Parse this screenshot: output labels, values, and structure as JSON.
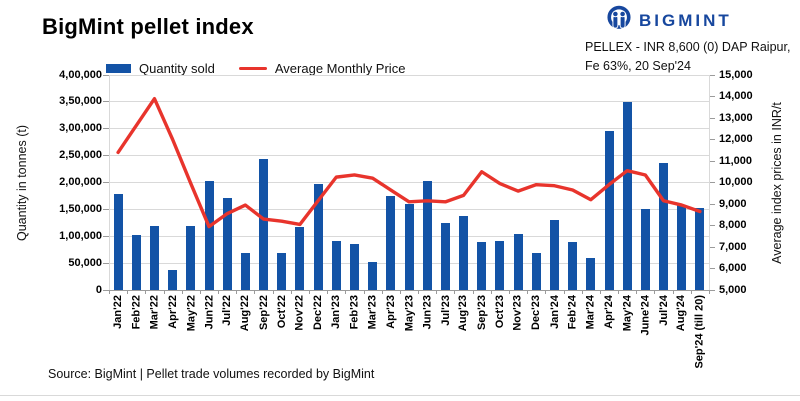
{
  "header": {
    "title": "BigMint pellet index",
    "brand": "BIGMINT",
    "quote_line1": "PELLEX - INR 8,600 (0) DAP Raipur,",
    "quote_line2": "Fe 63%, 20 Sep'24"
  },
  "legend": {
    "bar_label": "Quantity sold",
    "line_label": "Average Monthly Price"
  },
  "footer": {
    "source": "Source: BigMint | Pellet trade volumes recorded by BigMint"
  },
  "colors": {
    "bar": "#1353A6",
    "line": "#E8342C",
    "brand": "#17479E",
    "grid": "#D9D9D9",
    "axis": "#9B9B9B"
  },
  "chart_data": {
    "type": "bar",
    "subtype": "bar+line combo",
    "title": "BigMint pellet index",
    "categories": [
      "Jan'22",
      "Feb'22",
      "Mar'22",
      "Apr'22",
      "May'22",
      "Jun'22",
      "Jul'22",
      "Aug'22",
      "Sep'22",
      "Oct'22",
      "Nov'22",
      "Dec'22",
      "Jan'23",
      "Feb'23",
      "Mar'23",
      "Apr'23",
      "May'23",
      "Jun'23",
      "Jul'23",
      "Aug'23",
      "Sep'23",
      "Oct'23",
      "Nov'23",
      "Dec'23",
      "Jan'24",
      "Feb'24",
      "Mar'24",
      "Apr'24",
      "May'24",
      "June'24",
      "Jul'24",
      "Aug'24",
      "Sep'24 (till 20)"
    ],
    "series": [
      {
        "name": "Quantity sold",
        "type": "bar",
        "axis": "left",
        "values": [
          178000,
          103000,
          120000,
          37000,
          119000,
          203000,
          171000,
          68000,
          243000,
          68000,
          117000,
          198000,
          91000,
          86000,
          52000,
          174000,
          160000,
          203000,
          124000,
          138000,
          90000,
          91000,
          104000,
          69000,
          130000,
          90000,
          60000,
          295000,
          350000,
          150000,
          236000,
          158000,
          153000
        ]
      },
      {
        "name": "Average Monthly Price",
        "type": "line",
        "axis": "right",
        "values": [
          11400,
          12650,
          13900,
          12000,
          9950,
          7950,
          8550,
          8950,
          8300,
          8200,
          8050,
          9150,
          10250,
          10350,
          10200,
          9650,
          9100,
          9150,
          9100,
          9400,
          10500,
          9950,
          9600,
          9900,
          9850,
          9650,
          9200,
          9900,
          10550,
          10350,
          9150,
          8950,
          8650
        ]
      }
    ],
    "ylabel_left": "Quantity in tonnes (t)",
    "ylabel_right": "Average index prices in INR/t",
    "ylim_left": [
      0,
      400000
    ],
    "ylim_right": [
      5000,
      15000
    ],
    "left_ticks": [
      "4,00,000",
      "3,50,000",
      "3,00,000",
      "2,50,000",
      "2,00,000",
      "1,50,000",
      "1,00,000",
      "50,000",
      "0"
    ],
    "right_ticks": [
      "15,000",
      "14,000",
      "13,000",
      "12,000",
      "11,000",
      "10,000",
      "9,000",
      "8,000",
      "7,000",
      "6,000",
      "5,000"
    ],
    "grid": true,
    "legend_position": "top-left"
  }
}
